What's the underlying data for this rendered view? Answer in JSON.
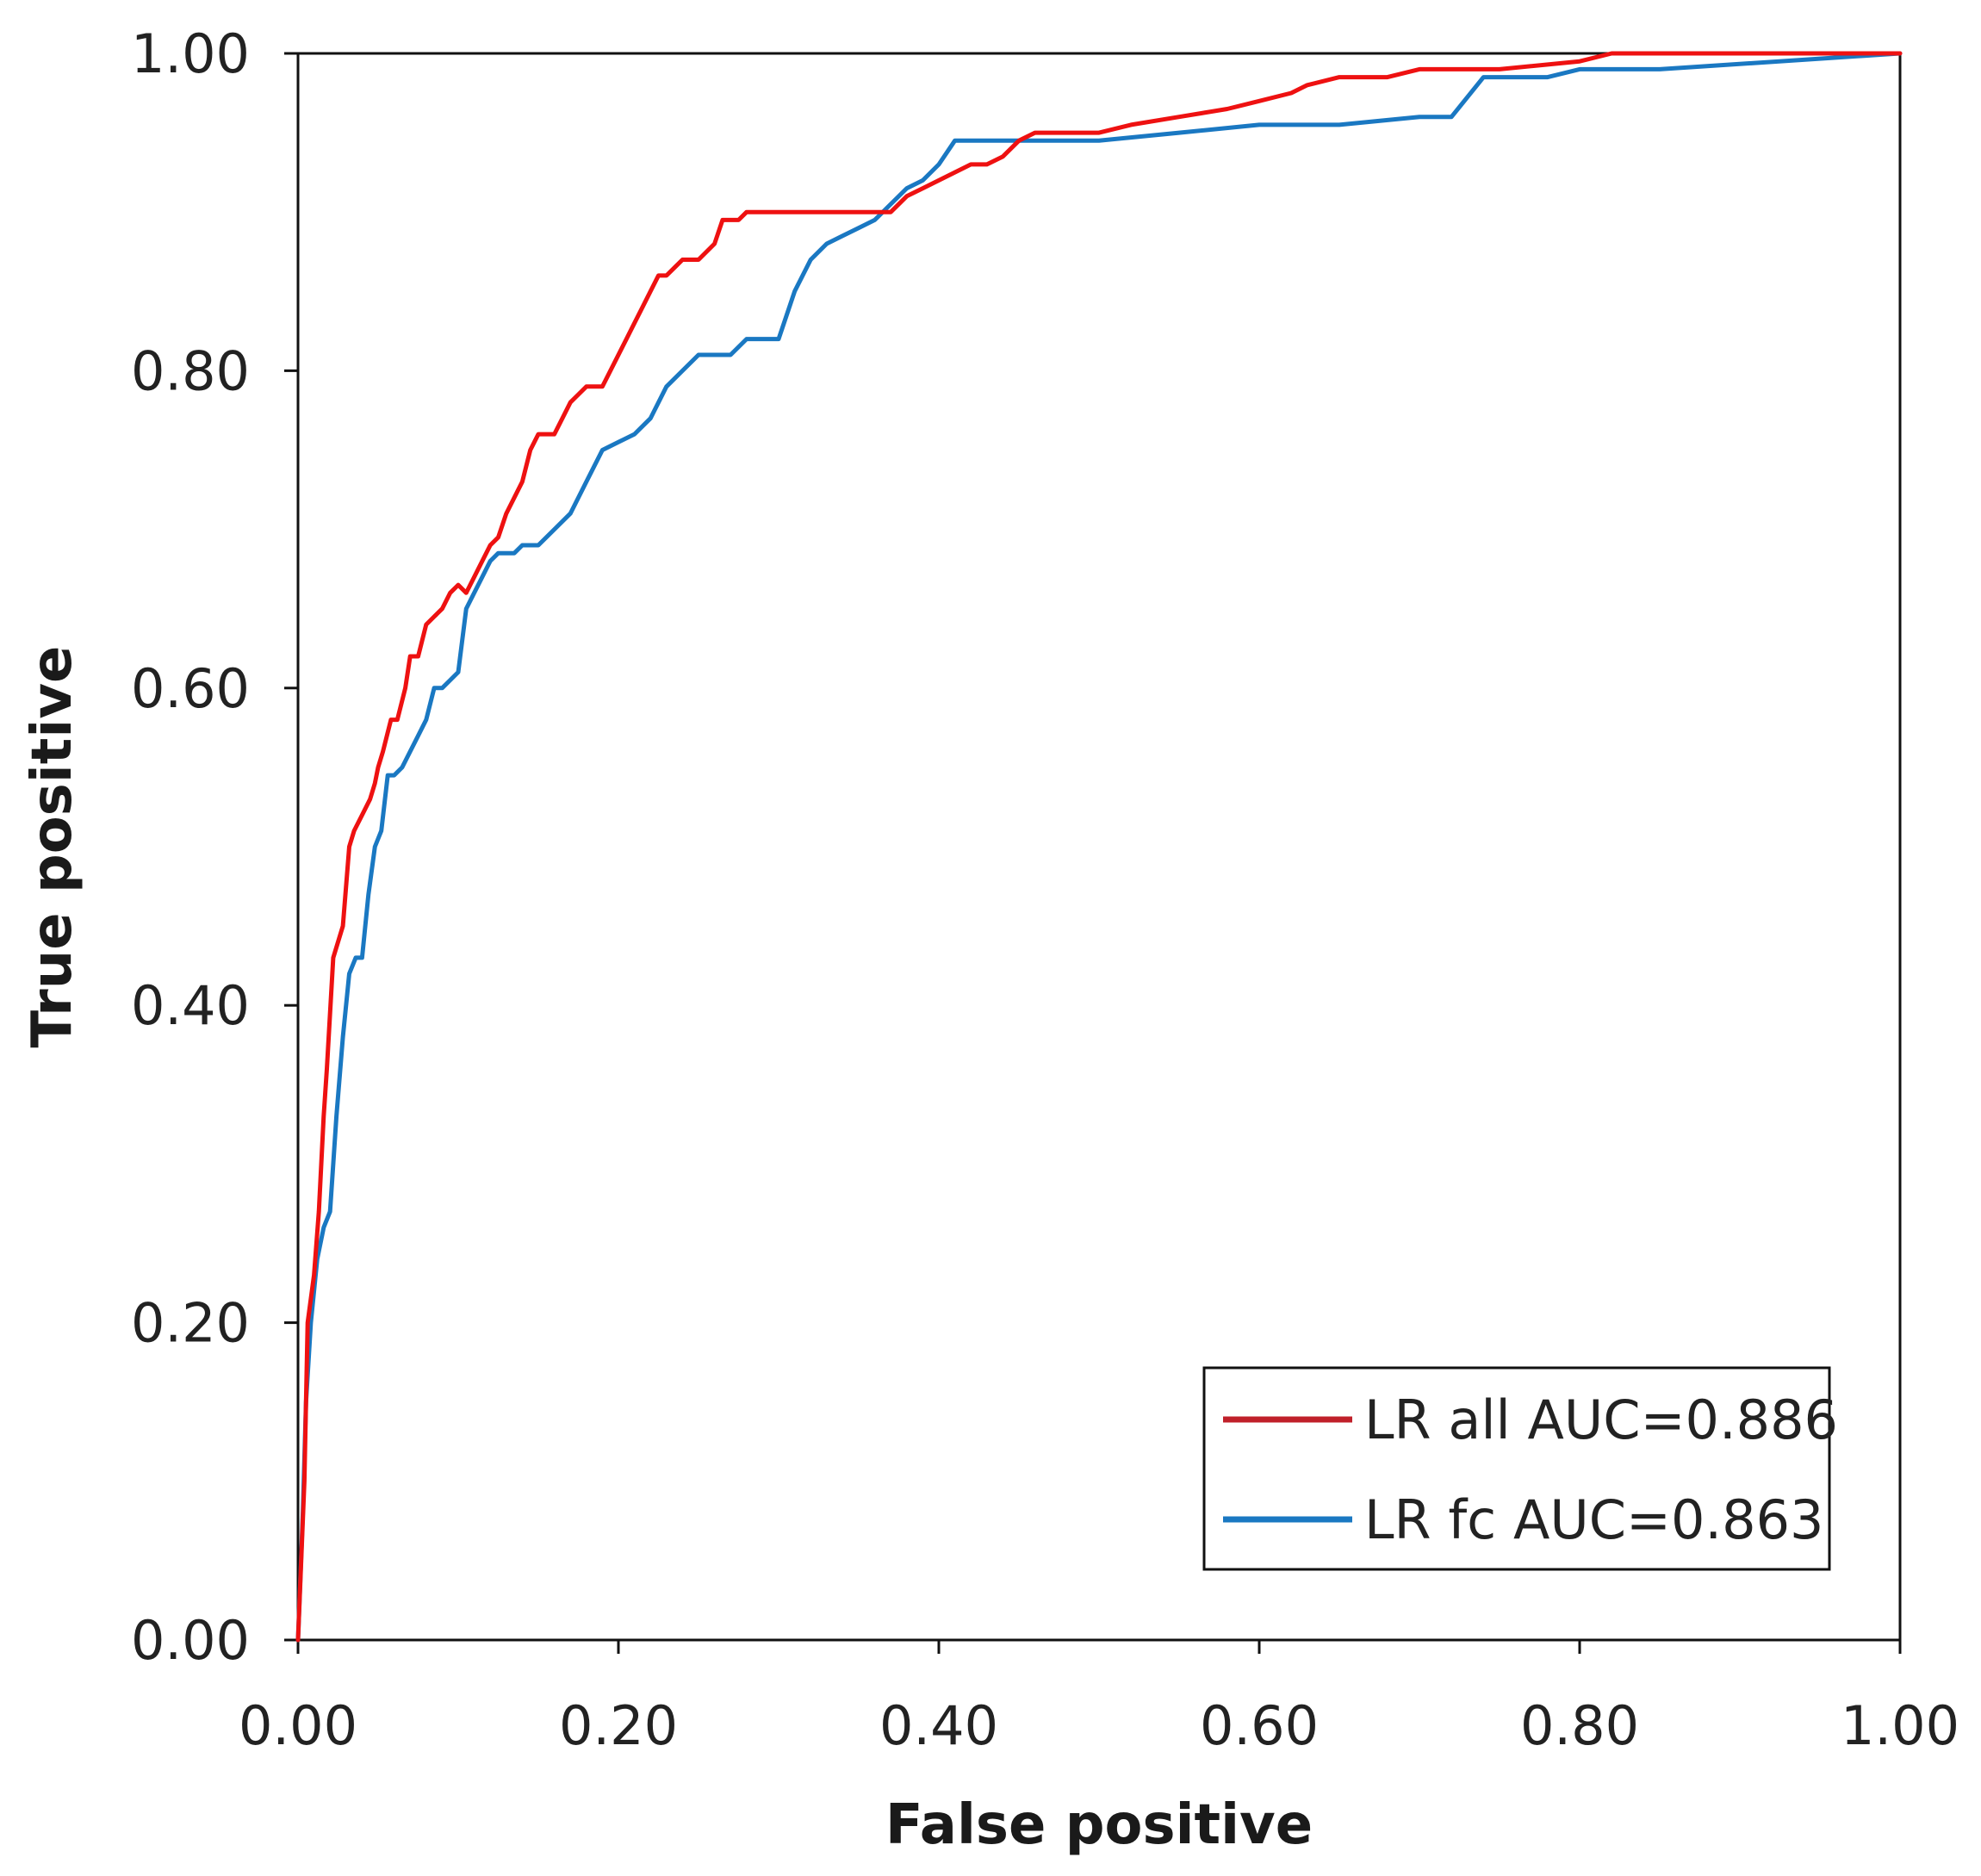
{
  "chart_data": {
    "type": "line",
    "title": "",
    "xlabel": "False positive",
    "ylabel": "True positive",
    "xlim": [
      0,
      1
    ],
    "ylim": [
      0,
      1
    ],
    "xticks": [
      "0.00",
      "0.20",
      "0.40",
      "0.60",
      "0.80",
      "1.00"
    ],
    "yticks": [
      "0.00",
      "0.20",
      "0.40",
      "0.60",
      "0.80",
      "1.00"
    ],
    "grid": false,
    "legend_position": "bottom-right",
    "series": [
      {
        "name": "LR all AUC=0.886",
        "color": "#ee1111",
        "legend_color": "#c0202a",
        "x": [
          0.0,
          0.004,
          0.006,
          0.01,
          0.013,
          0.016,
          0.018,
          0.022,
          0.025,
          0.028,
          0.032,
          0.035,
          0.04,
          0.045,
          0.048,
          0.05,
          0.053,
          0.058,
          0.062,
          0.067,
          0.07,
          0.075,
          0.08,
          0.085,
          0.09,
          0.095,
          0.1,
          0.105,
          0.11,
          0.115,
          0.12,
          0.125,
          0.13,
          0.135,
          0.14,
          0.145,
          0.15,
          0.155,
          0.16,
          0.165,
          0.17,
          0.175,
          0.18,
          0.185,
          0.19,
          0.195,
          0.2,
          0.205,
          0.21,
          0.215,
          0.22,
          0.225,
          0.23,
          0.235,
          0.24,
          0.25,
          0.26,
          0.265,
          0.275,
          0.28,
          0.29,
          0.3,
          0.31,
          0.33,
          0.35,
          0.37,
          0.38,
          0.39,
          0.4,
          0.41,
          0.42,
          0.43,
          0.44,
          0.45,
          0.46,
          0.5,
          0.52,
          0.55,
          0.58,
          0.6,
          0.62,
          0.63,
          0.65,
          0.68,
          0.7,
          0.72,
          0.75,
          0.8,
          0.82,
          0.85,
          1.0
        ],
        "y": [
          0.0,
          0.1,
          0.2,
          0.23,
          0.27,
          0.33,
          0.36,
          0.43,
          0.44,
          0.45,
          0.5,
          0.51,
          0.52,
          0.53,
          0.54,
          0.55,
          0.56,
          0.58,
          0.58,
          0.6,
          0.62,
          0.62,
          0.64,
          0.645,
          0.65,
          0.66,
          0.665,
          0.66,
          0.67,
          0.68,
          0.69,
          0.695,
          0.71,
          0.72,
          0.73,
          0.75,
          0.76,
          0.76,
          0.76,
          0.77,
          0.78,
          0.785,
          0.79,
          0.79,
          0.79,
          0.8,
          0.81,
          0.82,
          0.83,
          0.84,
          0.85,
          0.86,
          0.86,
          0.865,
          0.87,
          0.87,
          0.88,
          0.895,
          0.895,
          0.9,
          0.9,
          0.9,
          0.9,
          0.9,
          0.9,
          0.9,
          0.91,
          0.915,
          0.92,
          0.925,
          0.93,
          0.93,
          0.935,
          0.945,
          0.95,
          0.95,
          0.955,
          0.96,
          0.965,
          0.97,
          0.975,
          0.98,
          0.985,
          0.985,
          0.99,
          0.99,
          0.99,
          0.995,
          1.0,
          1.0,
          1.0
        ]
      },
      {
        "name": "LR fc AUC=0.863",
        "color": "#1a78c2",
        "legend_color": "#1a78c2",
        "x": [
          0.0,
          0.003,
          0.005,
          0.008,
          0.012,
          0.016,
          0.02,
          0.024,
          0.028,
          0.032,
          0.036,
          0.04,
          0.044,
          0.048,
          0.052,
          0.056,
          0.06,
          0.065,
          0.07,
          0.075,
          0.08,
          0.085,
          0.09,
          0.095,
          0.1,
          0.105,
          0.11,
          0.115,
          0.12,
          0.125,
          0.13,
          0.135,
          0.14,
          0.15,
          0.16,
          0.17,
          0.175,
          0.18,
          0.185,
          0.19,
          0.2,
          0.21,
          0.22,
          0.225,
          0.23,
          0.24,
          0.25,
          0.26,
          0.27,
          0.28,
          0.3,
          0.31,
          0.315,
          0.32,
          0.33,
          0.34,
          0.35,
          0.36,
          0.37,
          0.38,
          0.39,
          0.4,
          0.41,
          0.42,
          0.45,
          0.5,
          0.55,
          0.6,
          0.65,
          0.7,
          0.72,
          0.74,
          0.78,
          0.8,
          0.82,
          0.85,
          1.0
        ],
        "y": [
          0.0,
          0.08,
          0.15,
          0.2,
          0.24,
          0.26,
          0.27,
          0.33,
          0.38,
          0.42,
          0.43,
          0.43,
          0.47,
          0.5,
          0.51,
          0.545,
          0.545,
          0.55,
          0.56,
          0.57,
          0.58,
          0.6,
          0.6,
          0.605,
          0.61,
          0.65,
          0.66,
          0.67,
          0.68,
          0.685,
          0.685,
          0.685,
          0.69,
          0.69,
          0.7,
          0.71,
          0.72,
          0.73,
          0.74,
          0.75,
          0.755,
          0.76,
          0.77,
          0.78,
          0.79,
          0.8,
          0.81,
          0.81,
          0.81,
          0.82,
          0.82,
          0.85,
          0.86,
          0.87,
          0.88,
          0.885,
          0.89,
          0.895,
          0.905,
          0.915,
          0.92,
          0.93,
          0.945,
          0.945,
          0.945,
          0.945,
          0.95,
          0.955,
          0.955,
          0.96,
          0.96,
          0.985,
          0.985,
          0.99,
          0.99,
          0.99,
          1.0
        ]
      }
    ]
  }
}
